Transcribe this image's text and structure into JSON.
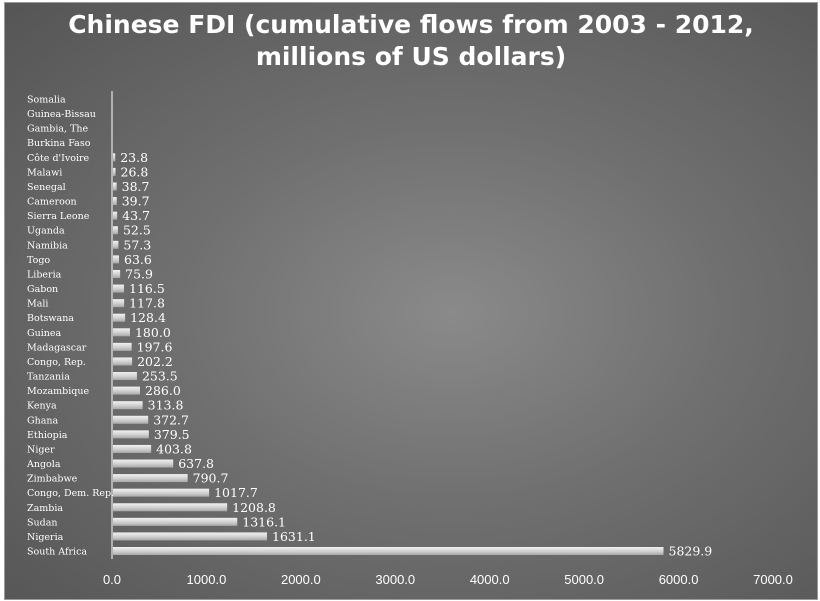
{
  "chart_data": {
    "type": "bar",
    "orientation": "horizontal",
    "title_lines": [
      "Chinese FDI (cumulative flows from 2003 - 2012,",
      "millions of US dollars)"
    ],
    "categories": [
      "Somalia",
      "Guinea-Bissau",
      "Gambia, The",
      "Burkina Faso",
      "Côte d'Ivoire",
      "Malawi",
      "Senegal",
      "Cameroon",
      "Sierra Leone",
      "Uganda",
      "Namibia",
      "Togo",
      "Liberia",
      "Gabon",
      "Mali",
      "Botswana",
      "Guinea",
      "Madagascar",
      "Congo, Rep.",
      "Tanzania",
      "Mozambique",
      "Kenya",
      "Ghana",
      "Ethiopia",
      "Niger",
      "Angola",
      "Zimbabwe",
      "Congo, Dem. Rep.",
      "Zambia",
      "Sudan",
      "Nigeria",
      "South Africa"
    ],
    "values": [
      null,
      null,
      null,
      null,
      23.8,
      26.8,
      38.7,
      39.7,
      43.7,
      52.5,
      57.3,
      63.6,
      75.9,
      116.5,
      117.8,
      128.4,
      180.0,
      197.6,
      202.2,
      253.5,
      286.0,
      313.8,
      372.7,
      379.5,
      403.8,
      637.8,
      790.7,
      1017.7,
      1208.8,
      1316.1,
      1631.1,
      5829.9
    ],
    "value_labels": [
      "",
      "",
      "",
      "",
      "23.8",
      "26.8",
      "38.7",
      "39.7",
      "43.7",
      "52.5",
      "57.3",
      "63.6",
      "75.9",
      "116.5",
      "117.8",
      "128.4",
      "180.0",
      "197.6",
      "202.2",
      "253.5",
      "286.0",
      "313.8",
      "372.7",
      "379.5",
      "403.8",
      "637.8",
      "790.7",
      "1017.7",
      "1208.8",
      "1316.1",
      "1631.1",
      "5829.9"
    ],
    "xlim": [
      0,
      7000
    ],
    "xticks": [
      "0.0",
      "1000.0",
      "2000.0",
      "3000.0",
      "4000.0",
      "5000.0",
      "6000.0",
      "7000.0"
    ],
    "xlabel": "",
    "ylabel": "",
    "grid": false,
    "legend": "none",
    "colors": {
      "background": "#6f6f6f",
      "bar": "#d9d9d9",
      "text": "#ffffff"
    }
  }
}
